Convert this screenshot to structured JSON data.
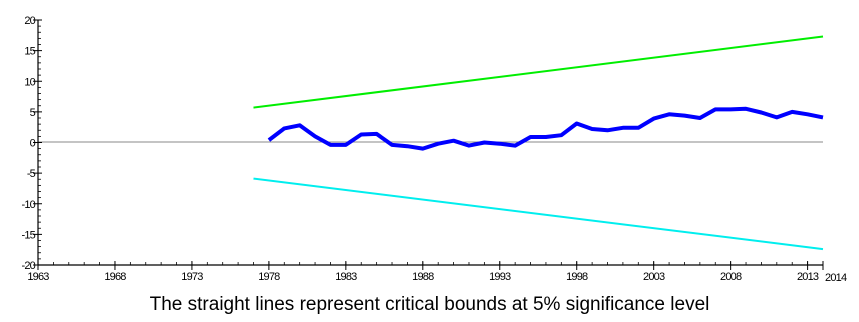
{
  "chart_data": {
    "type": "line",
    "caption": "The straight lines represent critical bounds at 5% significance level",
    "xlim": [
      1963,
      2014
    ],
    "ylim": [
      -20,
      20
    ],
    "xticks": [
      "1963",
      "1968",
      "1973",
      "1978",
      "1983",
      "1988",
      "1993",
      "1998",
      "2003",
      "2008",
      "2013",
      "2014"
    ],
    "yticks": [
      "20",
      "15",
      "10",
      "5",
      "0",
      "-5",
      "-10",
      "-15",
      "-20"
    ],
    "zero_line": true,
    "grid": false,
    "series": [
      {
        "color": "#0000ff",
        "x": [
          1978,
          1979,
          1980,
          1981,
          1982,
          1983,
          1984,
          1985,
          1986,
          1987,
          1988,
          1989,
          1990,
          1991,
          1992,
          1993,
          1994,
          1995,
          1996,
          1997,
          1998,
          1999,
          2000,
          2001,
          2002,
          2003,
          2004,
          2005,
          2006,
          2007,
          2008,
          2009,
          2010,
          2011,
          2012,
          2013,
          2014
        ],
        "y": [
          0.4,
          2.3,
          2.8,
          1.0,
          -0.4,
          -0.4,
          1.3,
          1.4,
          -0.4,
          -0.6,
          -1.0,
          -0.2,
          0.3,
          -0.5,
          0.0,
          -0.2,
          -0.5,
          0.9,
          0.9,
          1.2,
          3.1,
          2.2,
          2.0,
          2.4,
          2.4,
          3.9,
          4.6,
          4.4,
          4.0,
          5.4,
          5.4,
          5.5,
          4.9,
          4.1,
          5.0,
          4.6,
          4.1
        ]
      },
      {
        "color": "#00ee00",
        "x": [
          1977,
          2014
        ],
        "y": [
          5.7,
          17.3
        ]
      },
      {
        "color": "#00eeee",
        "x": [
          1977,
          2014
        ],
        "y": [
          -5.9,
          -17.4
        ]
      }
    ]
  }
}
